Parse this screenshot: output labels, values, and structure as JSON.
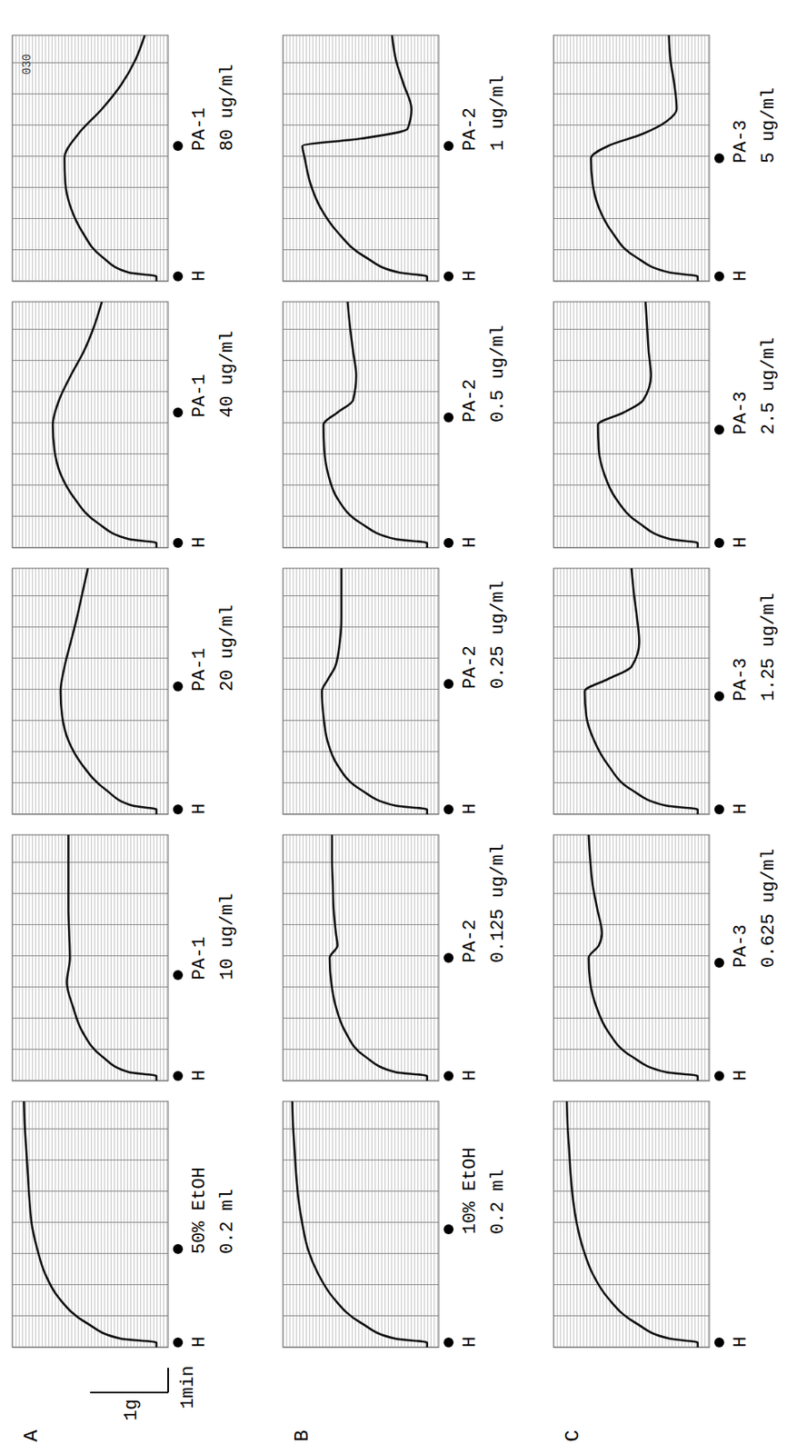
{
  "chart_data": [
    {
      "type": "line",
      "panel": "A",
      "xlim": [
        0,
        10
      ],
      "ylim": [
        0,
        2
      ],
      "tick_labels": false,
      "color": "#111111",
      "scale_bar": {
        "x": 1,
        "x_label": "1min",
        "y": 1,
        "y_label": "1g"
      },
      "x": [
        0,
        0.2,
        0.35,
        1,
        2,
        3,
        4,
        5,
        6,
        7,
        8,
        9,
        10
      ],
      "values": [
        0.15,
        0.15,
        0.6,
        1.05,
        1.4,
        1.58,
        1.68,
        1.75,
        1.78,
        1.8,
        1.82,
        1.84,
        1.85
      ],
      "events": [
        {
          "x": 0.2,
          "label": "H"
        },
        {
          "x": 4,
          "label": "50% EtOH",
          "dose": "0.2 ml"
        }
      ]
    },
    {
      "type": "line",
      "xlim": [
        0,
        10
      ],
      "ylim": [
        0,
        2
      ],
      "tick_labels": false,
      "color": "#111111",
      "x": [
        0,
        0.2,
        0.35,
        1,
        2,
        3,
        4,
        5,
        6,
        7,
        8,
        9,
        10
      ],
      "values": [
        0.15,
        0.15,
        0.5,
        0.85,
        1.1,
        1.22,
        1.3,
        1.26,
        1.27,
        1.28,
        1.28,
        1.28,
        1.28
      ],
      "events": [
        {
          "x": 0.2,
          "label": "H"
        },
        {
          "x": 4.3,
          "label": "PA-1",
          "dose": "10 ug/ml"
        }
      ]
    },
    {
      "type": "line",
      "xlim": [
        0,
        10
      ],
      "ylim": [
        0,
        2
      ],
      "tick_labels": false,
      "color": "#111111",
      "x": [
        0,
        0.2,
        0.35,
        1,
        2,
        3,
        4,
        5,
        6,
        7,
        8,
        9,
        10
      ],
      "values": [
        0.15,
        0.15,
        0.45,
        0.8,
        1.1,
        1.28,
        1.36,
        1.38,
        1.33,
        1.25,
        1.17,
        1.1,
        1.03
      ],
      "events": [
        {
          "x": 0.2,
          "label": "H"
        },
        {
          "x": 5.2,
          "label": "PA-1",
          "dose": "20 ug/ml"
        }
      ]
    },
    {
      "type": "line",
      "xlim": [
        0,
        10
      ],
      "ylim": [
        0,
        2
      ],
      "tick_labels": false,
      "color": "#111111",
      "x": [
        0,
        0.2,
        0.35,
        1,
        2,
        3,
        4,
        5,
        6,
        7,
        8,
        9,
        10
      ],
      "values": [
        0.15,
        0.15,
        0.5,
        0.9,
        1.2,
        1.38,
        1.46,
        1.48,
        1.4,
        1.25,
        1.08,
        0.95,
        0.85
      ],
      "events": [
        {
          "x": 0.2,
          "label": "H"
        },
        {
          "x": 5.5,
          "label": "PA-1",
          "dose": "40 ug/ml"
        }
      ]
    },
    {
      "type": "line",
      "xlim": [
        0,
        10
      ],
      "ylim": [
        0,
        2
      ],
      "tick_labels": false,
      "color": "#111111",
      "paper_label": "030",
      "x": [
        0,
        0.2,
        0.35,
        1,
        2,
        3,
        4,
        5,
        6,
        7,
        8,
        9,
        10
      ],
      "values": [
        0.15,
        0.15,
        0.5,
        0.85,
        1.1,
        1.25,
        1.32,
        1.33,
        1.15,
        0.85,
        0.6,
        0.42,
        0.3
      ],
      "events": [
        {
          "x": 0.2,
          "label": "H"
        },
        {
          "x": 5.5,
          "label": "PA-1",
          "dose": "80 ug/ml"
        }
      ]
    },
    {
      "type": "line",
      "panel": "B",
      "xlim": [
        0,
        10
      ],
      "ylim": [
        0,
        2
      ],
      "tick_labels": false,
      "color": "#111111",
      "x": [
        0,
        0.2,
        0.35,
        1,
        2,
        3,
        4,
        5,
        6,
        7,
        8,
        9,
        10
      ],
      "values": [
        0.15,
        0.15,
        0.55,
        1.0,
        1.35,
        1.55,
        1.68,
        1.75,
        1.8,
        1.83,
        1.85,
        1.87,
        1.88
      ],
      "events": [
        {
          "x": 0.2,
          "label": "H"
        },
        {
          "x": 4.8,
          "label": "10% EtOH",
          "dose": "0.2 ml"
        }
      ]
    },
    {
      "type": "line",
      "xlim": [
        0,
        10
      ],
      "ylim": [
        0,
        2
      ],
      "tick_labels": false,
      "color": "#111111",
      "x": [
        0,
        0.2,
        0.35,
        1,
        2,
        3,
        4,
        5,
        5.5,
        6,
        7,
        8,
        9,
        10
      ],
      "values": [
        0.15,
        0.15,
        0.55,
        0.95,
        1.2,
        1.32,
        1.38,
        1.4,
        1.3,
        1.32,
        1.35,
        1.36,
        1.37,
        1.37
      ],
      "events": [
        {
          "x": 0.2,
          "label": "H"
        },
        {
          "x": 5.0,
          "label": "PA-2",
          "dose": "0.125 ug/ml"
        }
      ]
    },
    {
      "type": "line",
      "xlim": [
        0,
        10
      ],
      "ylim": [
        0,
        2
      ],
      "tick_labels": false,
      "color": "#111111",
      "x": [
        0,
        0.2,
        0.35,
        1,
        2,
        3,
        4,
        5,
        5.5,
        6,
        7,
        8,
        9,
        10
      ],
      "values": [
        0.15,
        0.15,
        0.55,
        1.0,
        1.3,
        1.43,
        1.48,
        1.5,
        1.42,
        1.33,
        1.27,
        1.25,
        1.25,
        1.25
      ],
      "events": [
        {
          "x": 0.2,
          "label": "H"
        },
        {
          "x": 5.3,
          "label": "PA-2",
          "dose": "0.25 ug/ml"
        }
      ]
    },
    {
      "type": "line",
      "xlim": [
        0,
        10
      ],
      "ylim": [
        0,
        2
      ],
      "tick_labels": false,
      "color": "#111111",
      "x": [
        0,
        0.2,
        0.35,
        1,
        2,
        3,
        4,
        5,
        5.5,
        6,
        7,
        8,
        9,
        10
      ],
      "values": [
        0.15,
        0.15,
        0.55,
        1.0,
        1.3,
        1.42,
        1.47,
        1.48,
        1.3,
        1.1,
        1.06,
        1.1,
        1.14,
        1.17
      ],
      "events": [
        {
          "x": 0.2,
          "label": "H"
        },
        {
          "x": 5.3,
          "label": "PA-2",
          "dose": "0.5 ug/ml"
        }
      ]
    },
    {
      "type": "line",
      "xlim": [
        0,
        10
      ],
      "ylim": [
        0,
        2
      ],
      "tick_labels": false,
      "color": "#111111",
      "x": [
        0,
        0.2,
        0.35,
        1,
        2,
        3,
        4,
        5,
        5.5,
        5.8,
        6.2,
        7,
        8,
        9,
        10
      ],
      "values": [
        0.15,
        0.15,
        0.5,
        0.95,
        1.3,
        1.52,
        1.65,
        1.72,
        1.75,
        1.0,
        0.4,
        0.35,
        0.45,
        0.55,
        0.6
      ],
      "events": [
        {
          "x": 0.2,
          "label": "H"
        },
        {
          "x": 5.5,
          "label": "PA-2",
          "dose": "1 ug/ml"
        }
      ]
    },
    {
      "type": "line",
      "panel": "C",
      "xlim": [
        0,
        10
      ],
      "ylim": [
        0,
        2
      ],
      "tick_labels": false,
      "color": "#111111",
      "x": [
        0,
        0.2,
        0.35,
        1,
        2,
        3,
        4,
        5,
        6,
        7,
        8,
        9,
        10
      ],
      "values": [
        0.15,
        0.15,
        0.5,
        0.95,
        1.3,
        1.5,
        1.62,
        1.7,
        1.75,
        1.78,
        1.8,
        1.82,
        1.83
      ],
      "events": [
        {
          "x": 0.2,
          "label": "H"
        }
      ]
    },
    {
      "type": "line",
      "xlim": [
        0,
        10
      ],
      "ylim": [
        0,
        2
      ],
      "tick_labels": false,
      "color": "#111111",
      "x": [
        0,
        0.2,
        0.35,
        1,
        2,
        3,
        4,
        5,
        5.5,
        6,
        7,
        8,
        9,
        10
      ],
      "values": [
        0.15,
        0.15,
        0.55,
        1.0,
        1.3,
        1.45,
        1.53,
        1.55,
        1.42,
        1.38,
        1.44,
        1.5,
        1.53,
        1.55
      ],
      "events": [
        {
          "x": 0.2,
          "label": "H"
        },
        {
          "x": 4.8,
          "label": "PA-3",
          "dose": "0.625 ug/ml"
        }
      ]
    },
    {
      "type": "line",
      "xlim": [
        0,
        10
      ],
      "ylim": [
        0,
        2
      ],
      "tick_labels": false,
      "color": "#111111",
      "x": [
        0,
        0.2,
        0.35,
        1,
        2,
        3,
        4,
        5,
        5.5,
        6,
        7,
        8,
        9,
        10
      ],
      "values": [
        0.15,
        0.15,
        0.55,
        1.0,
        1.3,
        1.48,
        1.58,
        1.6,
        1.3,
        1.0,
        0.9,
        0.93,
        0.97,
        1.0
      ],
      "events": [
        {
          "x": 0.2,
          "label": "H"
        },
        {
          "x": 4.8,
          "label": "PA-3",
          "dose": "1.25 ug/ml"
        }
      ]
    },
    {
      "type": "line",
      "xlim": [
        0,
        10
      ],
      "ylim": [
        0,
        2
      ],
      "tick_labels": false,
      "color": "#111111",
      "x": [
        0,
        0.2,
        0.35,
        1,
        2,
        3,
        4,
        5,
        5.5,
        6,
        7,
        8,
        9,
        10
      ],
      "values": [
        0.15,
        0.15,
        0.5,
        0.9,
        1.2,
        1.35,
        1.42,
        1.43,
        1.1,
        0.85,
        0.75,
        0.78,
        0.8,
        0.82
      ],
      "events": [
        {
          "x": 0.2,
          "label": "H"
        },
        {
          "x": 4.8,
          "label": "PA-3",
          "dose": "2.5 ug/ml"
        }
      ]
    },
    {
      "type": "line",
      "xlim": [
        0,
        10
      ],
      "ylim": [
        0,
        2
      ],
      "tick_labels": false,
      "color": "#111111",
      "x": [
        0,
        0.2,
        0.35,
        1,
        2,
        3,
        4,
        5,
        5.5,
        6,
        6.5,
        7,
        8,
        9,
        10
      ],
      "values": [
        0.15,
        0.15,
        0.5,
        0.95,
        1.25,
        1.42,
        1.5,
        1.52,
        1.3,
        0.85,
        0.55,
        0.42,
        0.45,
        0.5,
        0.52
      ],
      "events": [
        {
          "x": 0.2,
          "label": "H"
        },
        {
          "x": 5.0,
          "label": "PA-3",
          "dose": "5 ug/ml"
        }
      ]
    }
  ]
}
